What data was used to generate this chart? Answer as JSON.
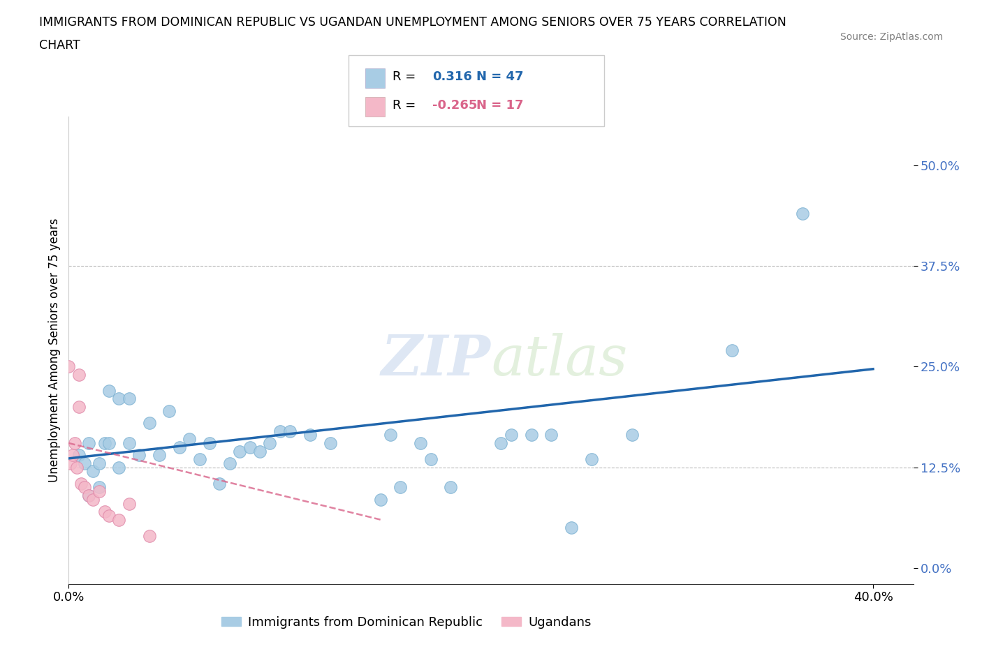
{
  "title_line1": "IMMIGRANTS FROM DOMINICAN REPUBLIC VS UGANDAN UNEMPLOYMENT AMONG SENIORS OVER 75 YEARS CORRELATION",
  "title_line2": "CHART",
  "source_text": "Source: ZipAtlas.com",
  "ylabel": "Unemployment Among Seniors over 75 years",
  "xlim": [
    0.0,
    0.42
  ],
  "ylim": [
    -0.02,
    0.56
  ],
  "ytick_vals": [
    0.0,
    0.125,
    0.25,
    0.375,
    0.5
  ],
  "ytick_labels": [
    "0.0%",
    "12.5%",
    "25.0%",
    "37.5%",
    "50.0%"
  ],
  "xtick_vals": [
    0.0,
    0.4
  ],
  "xtick_labels": [
    "0.0%",
    "40.0%"
  ],
  "hlines": [
    0.125,
    0.375
  ],
  "blue_R": "0.316",
  "blue_N": "47",
  "pink_R": "-0.265",
  "pink_N": "17",
  "blue_color": "#a8cce4",
  "pink_color": "#f4b8c8",
  "blue_line_color": "#2166ac",
  "pink_line_color": "#d9648a",
  "ytick_color": "#4472c4",
  "watermark_zip": "ZIP",
  "watermark_atlas": "atlas",
  "blue_scatter_x": [
    0.005,
    0.008,
    0.01,
    0.01,
    0.012,
    0.015,
    0.015,
    0.018,
    0.02,
    0.02,
    0.025,
    0.025,
    0.03,
    0.03,
    0.035,
    0.04,
    0.045,
    0.05,
    0.055,
    0.06,
    0.065,
    0.07,
    0.075,
    0.08,
    0.085,
    0.09,
    0.095,
    0.1,
    0.105,
    0.11,
    0.12,
    0.13,
    0.155,
    0.16,
    0.165,
    0.175,
    0.18,
    0.19,
    0.215,
    0.22,
    0.23,
    0.24,
    0.26,
    0.28,
    0.33,
    0.365,
    0.25
  ],
  "blue_scatter_y": [
    0.14,
    0.13,
    0.155,
    0.09,
    0.12,
    0.13,
    0.1,
    0.155,
    0.155,
    0.22,
    0.125,
    0.21,
    0.155,
    0.21,
    0.14,
    0.18,
    0.14,
    0.195,
    0.15,
    0.16,
    0.135,
    0.155,
    0.105,
    0.13,
    0.145,
    0.15,
    0.145,
    0.155,
    0.17,
    0.17,
    0.165,
    0.155,
    0.085,
    0.165,
    0.1,
    0.155,
    0.135,
    0.1,
    0.155,
    0.165,
    0.165,
    0.165,
    0.135,
    0.165,
    0.27,
    0.44,
    0.05
  ],
  "pink_scatter_x": [
    0.0,
    0.001,
    0.002,
    0.003,
    0.004,
    0.005,
    0.005,
    0.006,
    0.008,
    0.01,
    0.012,
    0.015,
    0.018,
    0.02,
    0.025,
    0.03,
    0.04
  ],
  "pink_scatter_y": [
    0.25,
    0.13,
    0.14,
    0.155,
    0.125,
    0.2,
    0.24,
    0.105,
    0.1,
    0.09,
    0.085,
    0.095,
    0.07,
    0.065,
    0.06,
    0.08,
    0.04
  ],
  "blue_line_x": [
    0.0,
    0.4
  ],
  "blue_line_y": [
    0.136,
    0.247
  ],
  "pink_line_x": [
    0.0,
    0.155
  ],
  "pink_line_y": [
    0.155,
    0.06
  ]
}
